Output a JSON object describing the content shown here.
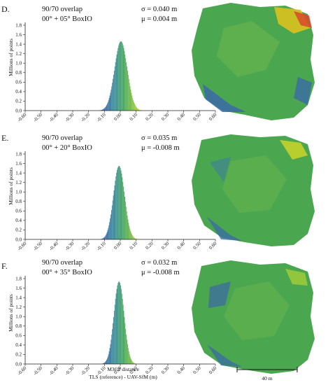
{
  "figure_labels": {
    "x_axis_line1": "M3C2 distance",
    "x_axis_line2": "TLS (reference) - UAV-SfM (m)",
    "scale_bar": "40 m"
  },
  "chart_data": [
    {
      "type": "bar",
      "panel": "D.",
      "annotation_line1": "90/70 overlap",
      "annotation_line2": "00° + 05° BoxIO",
      "sigma_text": "σ = 0.040 m",
      "mu_text": "μ = 0.004 m",
      "ylabel": "Millions of points",
      "ylim": [
        0,
        1.8
      ],
      "yticks": [
        "0.0",
        "0.2",
        "0.4",
        "0.6",
        "0.8",
        "1.0",
        "1.2",
        "1.4",
        "1.6",
        "1.8"
      ],
      "xlim": [
        -0.6,
        0.6
      ],
      "xticks": [
        "-0.60",
        "-0.50",
        "-0.40",
        "-0.30",
        "-0.20",
        "-0.10",
        "0.00",
        "0.10",
        "0.20",
        "0.30",
        "0.40",
        "0.50",
        "0.60"
      ],
      "distribution": {
        "mean": 0.004,
        "sigma": 0.04,
        "peak": 1.46
      }
    },
    {
      "type": "bar",
      "panel": "E.",
      "annotation_line1": "90/70 overlap",
      "annotation_line2": "00° + 20° BoxIO",
      "sigma_text": "σ = 0.035 m",
      "mu_text": "μ = -0.008 m",
      "ylabel": "Millions of points",
      "ylim": [
        0,
        1.8
      ],
      "yticks": [
        "0.0",
        "0.2",
        "0.4",
        "0.6",
        "0.8",
        "1.0",
        "1.2",
        "1.4",
        "1.6",
        "1.8"
      ],
      "xlim": [
        -0.6,
        0.6
      ],
      "xticks": [
        "-0.60",
        "-0.50",
        "-0.40",
        "-0.30",
        "-0.20",
        "-0.10",
        "0.00",
        "0.10",
        "0.20",
        "0.30",
        "0.40",
        "0.50",
        "0.60"
      ],
      "distribution": {
        "mean": -0.008,
        "sigma": 0.035,
        "peak": 1.55
      }
    },
    {
      "type": "bar",
      "panel": "F.",
      "annotation_line1": "90/70 overlap",
      "annotation_line2": "00° + 35° BoxIO",
      "sigma_text": "σ = 0.032 m",
      "mu_text": "μ = -0.008 m",
      "ylabel": "Millions of points",
      "ylim": [
        0,
        1.8
      ],
      "yticks": [
        "0.0",
        "0.2",
        "0.4",
        "0.6",
        "0.8",
        "1.0",
        "1.2",
        "1.4",
        "1.6",
        "1.8"
      ],
      "xlim": [
        -0.6,
        0.6
      ],
      "xticks": [
        "-0.60",
        "-0.50",
        "-0.40",
        "-0.30",
        "-0.20",
        "-0.10",
        "0.00",
        "0.10",
        "0.20",
        "0.30",
        "0.40",
        "0.50",
        "0.60"
      ],
      "distribution": {
        "mean": -0.008,
        "sigma": 0.032,
        "peak": 1.74
      }
    }
  ]
}
